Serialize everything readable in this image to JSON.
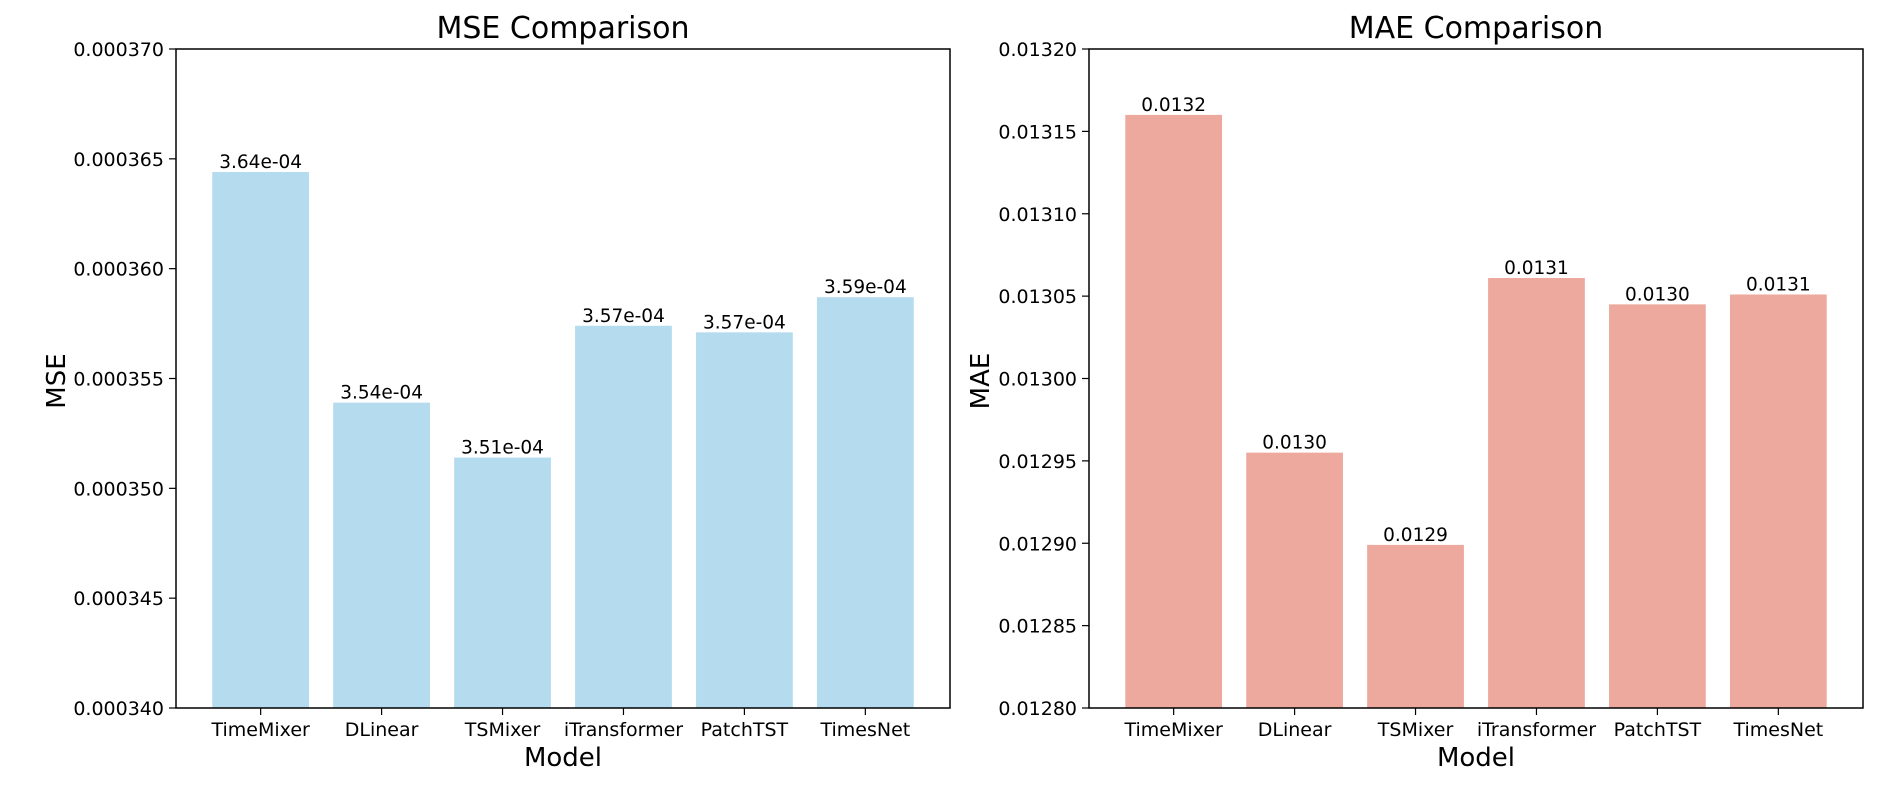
{
  "chart_data": [
    {
      "type": "bar",
      "title": "MSE Comparison",
      "xlabel": "Model",
      "ylabel": "MSE",
      "categories": [
        "TimeMixer",
        "DLinear",
        "TSMixer",
        "iTransformer",
        "PatchTST",
        "TimesNet"
      ],
      "values": [
        0.0003644,
        0.0003539,
        0.0003514,
        0.0003574,
        0.0003571,
        0.0003587
      ],
      "value_labels": [
        "3.64e-04",
        "3.54e-04",
        "3.51e-04",
        "3.57e-04",
        "3.57e-04",
        "3.59e-04"
      ],
      "ylim": [
        0.00034,
        0.00037
      ],
      "yticks": [
        0.00034,
        0.000345,
        0.00035,
        0.000355,
        0.00036,
        0.000365,
        0.00037
      ],
      "ytick_labels": [
        "0.000340",
        "0.000345",
        "0.000350",
        "0.000355",
        "0.000360",
        "0.000365",
        "0.000370"
      ],
      "color": "#b4dbee",
      "grid": false
    },
    {
      "type": "bar",
      "title": "MAE Comparison",
      "xlabel": "Model",
      "ylabel": "MAE",
      "categories": [
        "TimeMixer",
        "DLinear",
        "TSMixer",
        "iTransformer",
        "PatchTST",
        "TimesNet"
      ],
      "values": [
        0.01316,
        0.012955,
        0.012899,
        0.013061,
        0.013045,
        0.013051
      ],
      "value_labels": [
        "0.0132",
        "0.0130",
        "0.0129",
        "0.0131",
        "0.0130",
        "0.0131"
      ],
      "ylim": [
        0.0128,
        0.0132
      ],
      "yticks": [
        0.0128,
        0.01285,
        0.0129,
        0.01295,
        0.013,
        0.01305,
        0.0131,
        0.01315,
        0.0132
      ],
      "ytick_labels": [
        "0.01280",
        "0.01285",
        "0.01290",
        "0.01295",
        "0.01300",
        "0.01305",
        "0.01310",
        "0.01315",
        "0.01320"
      ],
      "color": "#eea99e",
      "grid": false
    }
  ]
}
